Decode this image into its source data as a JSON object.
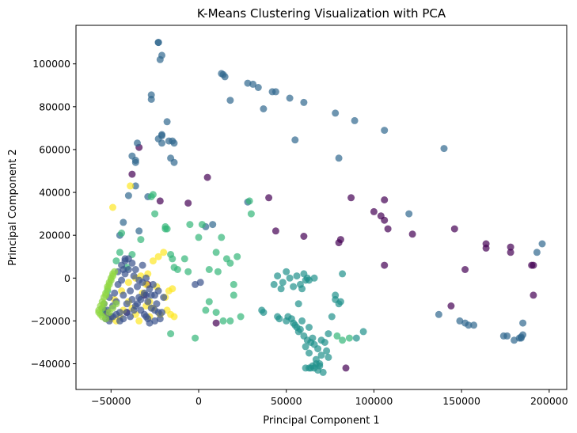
{
  "chart_data": {
    "type": "scatter",
    "title": "K-Means Clustering Visualization with PCA",
    "xlabel": "Principal Component 1",
    "ylabel": "Principal Component 2",
    "xlim": [
      -70000,
      210000
    ],
    "ylim": [
      -52000,
      118000
    ],
    "xticks": [
      -50000,
      0,
      50000,
      100000,
      150000,
      200000
    ],
    "yticks": [
      -40000,
      -20000,
      0,
      20000,
      40000,
      60000,
      80000,
      100000
    ],
    "grid": false,
    "legend": "none",
    "marker_alpha": 0.7,
    "colors": {
      "cluster_0": "#440154",
      "cluster_1": "#31688e",
      "cluster_2": "#35b779",
      "cluster_3": "#fde725",
      "cluster_4": "#3b528b",
      "cluster_5": "#21918c",
      "cluster_6": "#90d743"
    },
    "series": [
      {
        "cluster": "cluster_0",
        "x": [
          -22000,
          -6000,
          5000,
          40000,
          44000,
          60000,
          80000,
          81000,
          87000,
          100000,
          104000,
          106000,
          106000,
          108000,
          106000,
          122000,
          146000,
          152000,
          164000,
          164000,
          178000,
          178000,
          190000,
          191000,
          191000,
          144000,
          84000,
          -34000,
          -38000,
          -29000,
          10000,
          -31000,
          -41000
        ],
        "y": [
          36000,
          35000,
          47000,
          37500,
          22000,
          19500,
          16500,
          18000,
          37500,
          31000,
          29000,
          27000,
          36500,
          23000,
          6000,
          20500,
          23000,
          4000,
          16000,
          14000,
          14500,
          12000,
          6000,
          6000,
          -8000,
          -13000,
          -42000,
          61000,
          48500,
          -3000,
          -21000,
          -8000,
          -16000
        ]
      },
      {
        "cluster": "cluster_1",
        "x": [
          -23000,
          -23000,
          -21000,
          -22000,
          -27000,
          -27000,
          -35000,
          -38000,
          -36000,
          -36000,
          -23000,
          -21000,
          -21000,
          -21000,
          -17000,
          -18000,
          -15000,
          -14000,
          -16000,
          -14000,
          -36000,
          -40000,
          -29000,
          -34000,
          -43000,
          -45000,
          4000,
          8000,
          13000,
          14000,
          15000,
          18000,
          28000,
          31000,
          34000,
          37000,
          42000,
          44000,
          52000,
          55000,
          60000,
          78000,
          80000,
          89000,
          106000,
          140000,
          120000,
          137000,
          149000,
          152000,
          154000,
          157000,
          174000,
          176000,
          180000,
          183000,
          184000,
          185000,
          184000,
          185000,
          193000,
          196000,
          28000
        ],
        "y": [
          110000,
          110000,
          104000,
          102000,
          83500,
          85500,
          63000,
          57000,
          54000,
          55000,
          65000,
          66500,
          67000,
          63000,
          64000,
          73000,
          64000,
          63000,
          56000,
          54000,
          43000,
          38500,
          38000,
          22000,
          26000,
          20000,
          24000,
          25000,
          95500,
          95000,
          94000,
          83000,
          91000,
          90500,
          89000,
          79000,
          87000,
          87000,
          84000,
          64500,
          82000,
          77000,
          56000,
          73500,
          69000,
          60500,
          30000,
          -17000,
          -20000,
          -21000,
          -22000,
          -22000,
          -27000,
          -27000,
          -29000,
          -28000,
          -28000,
          -26500,
          -27500,
          -21000,
          12000,
          16000,
          35500
        ]
      },
      {
        "cluster": "cluster_2",
        "x": [
          -54000,
          -55000,
          -52000,
          -47000,
          -45000,
          -41000,
          -38000,
          -26000,
          -27000,
          -19000,
          -18000,
          -16000,
          -15000,
          -14000,
          -12000,
          -8000,
          -6000,
          -5000,
          0,
          2000,
          6000,
          10000,
          11000,
          13000,
          16000,
          18000,
          20000,
          22000,
          -16000,
          -2000,
          4000,
          6000,
          10000,
          14000,
          18000,
          20000,
          24000,
          29000,
          30000,
          79000,
          82000,
          86000,
          -25000,
          -33000,
          -19000,
          -44000
        ],
        "y": [
          -15000,
          -16000,
          -6000,
          8000,
          12000,
          5000,
          11000,
          39000,
          38000,
          24000,
          23000,
          11000,
          9000,
          5000,
          4000,
          9000,
          3000,
          25000,
          19000,
          25000,
          4000,
          12000,
          3000,
          19000,
          9000,
          7000,
          -3000,
          10000,
          -26000,
          -28000,
          -15000,
          -11000,
          -16000,
          -20000,
          -20000,
          -8000,
          -18000,
          36000,
          30000,
          -27000,
          -29000,
          -28000,
          30000,
          18000,
          23000,
          21000
        ]
      },
      {
        "cluster": "cluster_3",
        "x": [
          -52000,
          -50000,
          -47000,
          -45000,
          -43000,
          -40000,
          -38000,
          -36000,
          -34000,
          -30000,
          -28000,
          -26000,
          -22000,
          -19000,
          -17000,
          -15000,
          -33000,
          -30000,
          -26000,
          -23000,
          -20000,
          -48000,
          -44000,
          -40000,
          -36000,
          -32000,
          -28000,
          -24000,
          -18000,
          -16000,
          -14000,
          -39000,
          -29000,
          -49000
        ],
        "y": [
          -16000,
          -19000,
          -20000,
          -18000,
          -15000,
          -11000,
          -14000,
          -17000,
          -20000,
          -13000,
          -18000,
          -14000,
          -17000,
          -9000,
          -6000,
          -5000,
          1000,
          -3000,
          8000,
          10000,
          12000,
          -10000,
          -6000,
          -2000,
          0,
          -7000,
          -11000,
          -4000,
          -15000,
          -17000,
          -18000,
          43000,
          2000,
          33000
        ]
      },
      {
        "cluster": "cluster_4",
        "x": [
          -55000,
          -54000,
          -53000,
          -52000,
          -51000,
          -50000,
          -49000,
          -48000,
          -47000,
          -46000,
          -45000,
          -44000,
          -43000,
          -42000,
          -41000,
          -40000,
          -39000,
          -38000,
          -37000,
          -36000,
          -35000,
          -34000,
          -33000,
          -32000,
          -31000,
          -30000,
          -29000,
          -28000,
          -27000,
          -26000,
          -25000,
          -24000,
          -23000,
          -22000,
          -21000,
          -20000,
          -53000,
          -51000,
          -49000,
          -47000,
          -45000,
          -43000,
          -41000,
          -39000,
          -37000,
          -35000,
          -33000,
          -31000,
          -29000,
          -27000,
          -25000,
          -23000,
          -46000,
          -44000,
          -42000,
          -40000,
          -38000,
          -36000,
          -34000,
          -32000,
          -30000,
          -28000,
          -43000,
          -42000,
          -30000,
          -25000,
          -2000,
          1000
        ],
        "y": [
          -14000,
          -12000,
          -17000,
          -15000,
          -9000,
          -18000,
          -13000,
          -7000,
          -11000,
          -3000,
          -16000,
          -1000,
          -8000,
          2000,
          -12000,
          4000,
          -6000,
          -10000,
          1000,
          -13000,
          -4000,
          -9000,
          -15000,
          -2000,
          -7000,
          0,
          -11000,
          -5000,
          -14000,
          -3000,
          -8000,
          -12000,
          -6000,
          -19000,
          -16000,
          -9000,
          -19000,
          -20000,
          -18000,
          -17000,
          -20000,
          -19000,
          -16000,
          -18000,
          -15000,
          -12000,
          -10000,
          -17000,
          -19000,
          -8000,
          -20000,
          -16000,
          3000,
          6000,
          8000,
          9000,
          7000,
          4000,
          -1000,
          6000,
          -18000,
          -21000,
          4000,
          9000,
          -8000,
          -15000,
          -3000,
          -2000
        ]
      },
      {
        "cluster": "cluster_5",
        "x": [
          45000,
          48000,
          50000,
          52000,
          54000,
          56000,
          57000,
          58000,
          59000,
          60000,
          61000,
          62000,
          63000,
          64000,
          65000,
          66000,
          67000,
          68000,
          69000,
          70000,
          72000,
          74000,
          76000,
          78000,
          80000,
          82000,
          51000,
          53000,
          55000,
          57000,
          59000,
          61000,
          63000,
          65000,
          67000,
          69000,
          71000,
          73000,
          45000,
          46000,
          50000,
          54000,
          56000,
          58000,
          60000,
          62000,
          64000,
          66000,
          68000,
          70000,
          74000,
          78000,
          81000,
          90000,
          94000,
          36000,
          37000,
          43000,
          47000,
          63000,
          66000,
          61000,
          63000
        ],
        "y": [
          1000,
          -2000,
          3000,
          0,
          -4000,
          1000,
          -12000,
          -3000,
          -5000,
          2000,
          -1000,
          0,
          -23000,
          -42000,
          -41000,
          -42000,
          -40000,
          -43000,
          -41000,
          -29000,
          -30000,
          -26000,
          -18000,
          -10000,
          -12000,
          2000,
          -18000,
          -19000,
          -22000,
          -25000,
          -20000,
          -32000,
          -35000,
          -28000,
          -38000,
          -40000,
          -44000,
          -34000,
          -18000,
          -19000,
          -20000,
          -21000,
          -23000,
          -24000,
          -27000,
          -29000,
          -30000,
          -31000,
          -33000,
          -36000,
          -37000,
          -8000,
          -11000,
          -28000,
          -25000,
          -15000,
          -16000,
          -3000,
          -5000,
          -1000,
          0,
          -42000,
          -42000
        ]
      },
      {
        "cluster": "cluster_6",
        "x": [
          -57000,
          -56000,
          -55000,
          -54000,
          -53000,
          -52000,
          -51000,
          -50000,
          -49000,
          -48000,
          -56000,
          -55000,
          -54000,
          -53000,
          -52000,
          -51000,
          -50000,
          -49000,
          -57000,
          -55000,
          -53000,
          -51000,
          -49000,
          -47000
        ],
        "y": [
          -15000,
          -13000,
          -11000,
          -9000,
          -7000,
          -5000,
          -3000,
          -1000,
          1000,
          3000,
          -17000,
          -14000,
          -12000,
          -8000,
          -4000,
          -2000,
          0,
          2000,
          -16000,
          -18000,
          -19000,
          -16000,
          -14000,
          -12000
        ]
      }
    ]
  }
}
